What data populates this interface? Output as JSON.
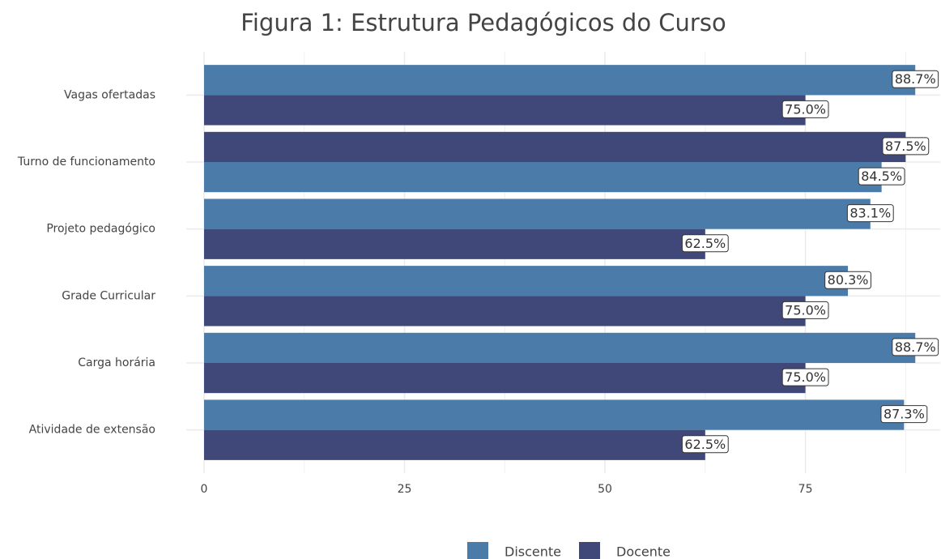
{
  "chart_data": {
    "type": "bar",
    "orientation": "horizontal",
    "title": "Figura 1: Estrutura Pedagógicos do Curso",
    "categories": [
      "Vagas ofertadas",
      "Turno de funcionamento",
      "Projeto pedagógico",
      "Grade Curricular",
      "Carga horária",
      "Atividade de extensão"
    ],
    "series": [
      {
        "name": "Discente",
        "color": "#4a7ba9",
        "values": [
          88.7,
          84.5,
          83.1,
          80.3,
          88.7,
          87.3
        ],
        "value_labels": [
          "88.7%",
          "84.5%",
          "83.1%",
          "80.3%",
          "88.7%",
          "87.3%"
        ]
      },
      {
        "name": "Docente",
        "color": "#3f4879",
        "values": [
          75.0,
          87.5,
          62.5,
          75.0,
          75.0,
          62.5
        ],
        "value_labels": [
          "75.0%",
          "87.5%",
          "62.5%",
          "75.0%",
          "75.0%",
          "62.5%"
        ]
      }
    ],
    "xlim": [
      0,
      91
    ],
    "xticks": [
      0,
      25,
      50,
      75
    ],
    "xticks_minor": [
      12.5,
      37.5,
      62.5,
      87.5
    ],
    "grid": true,
    "legend": "bottom"
  }
}
